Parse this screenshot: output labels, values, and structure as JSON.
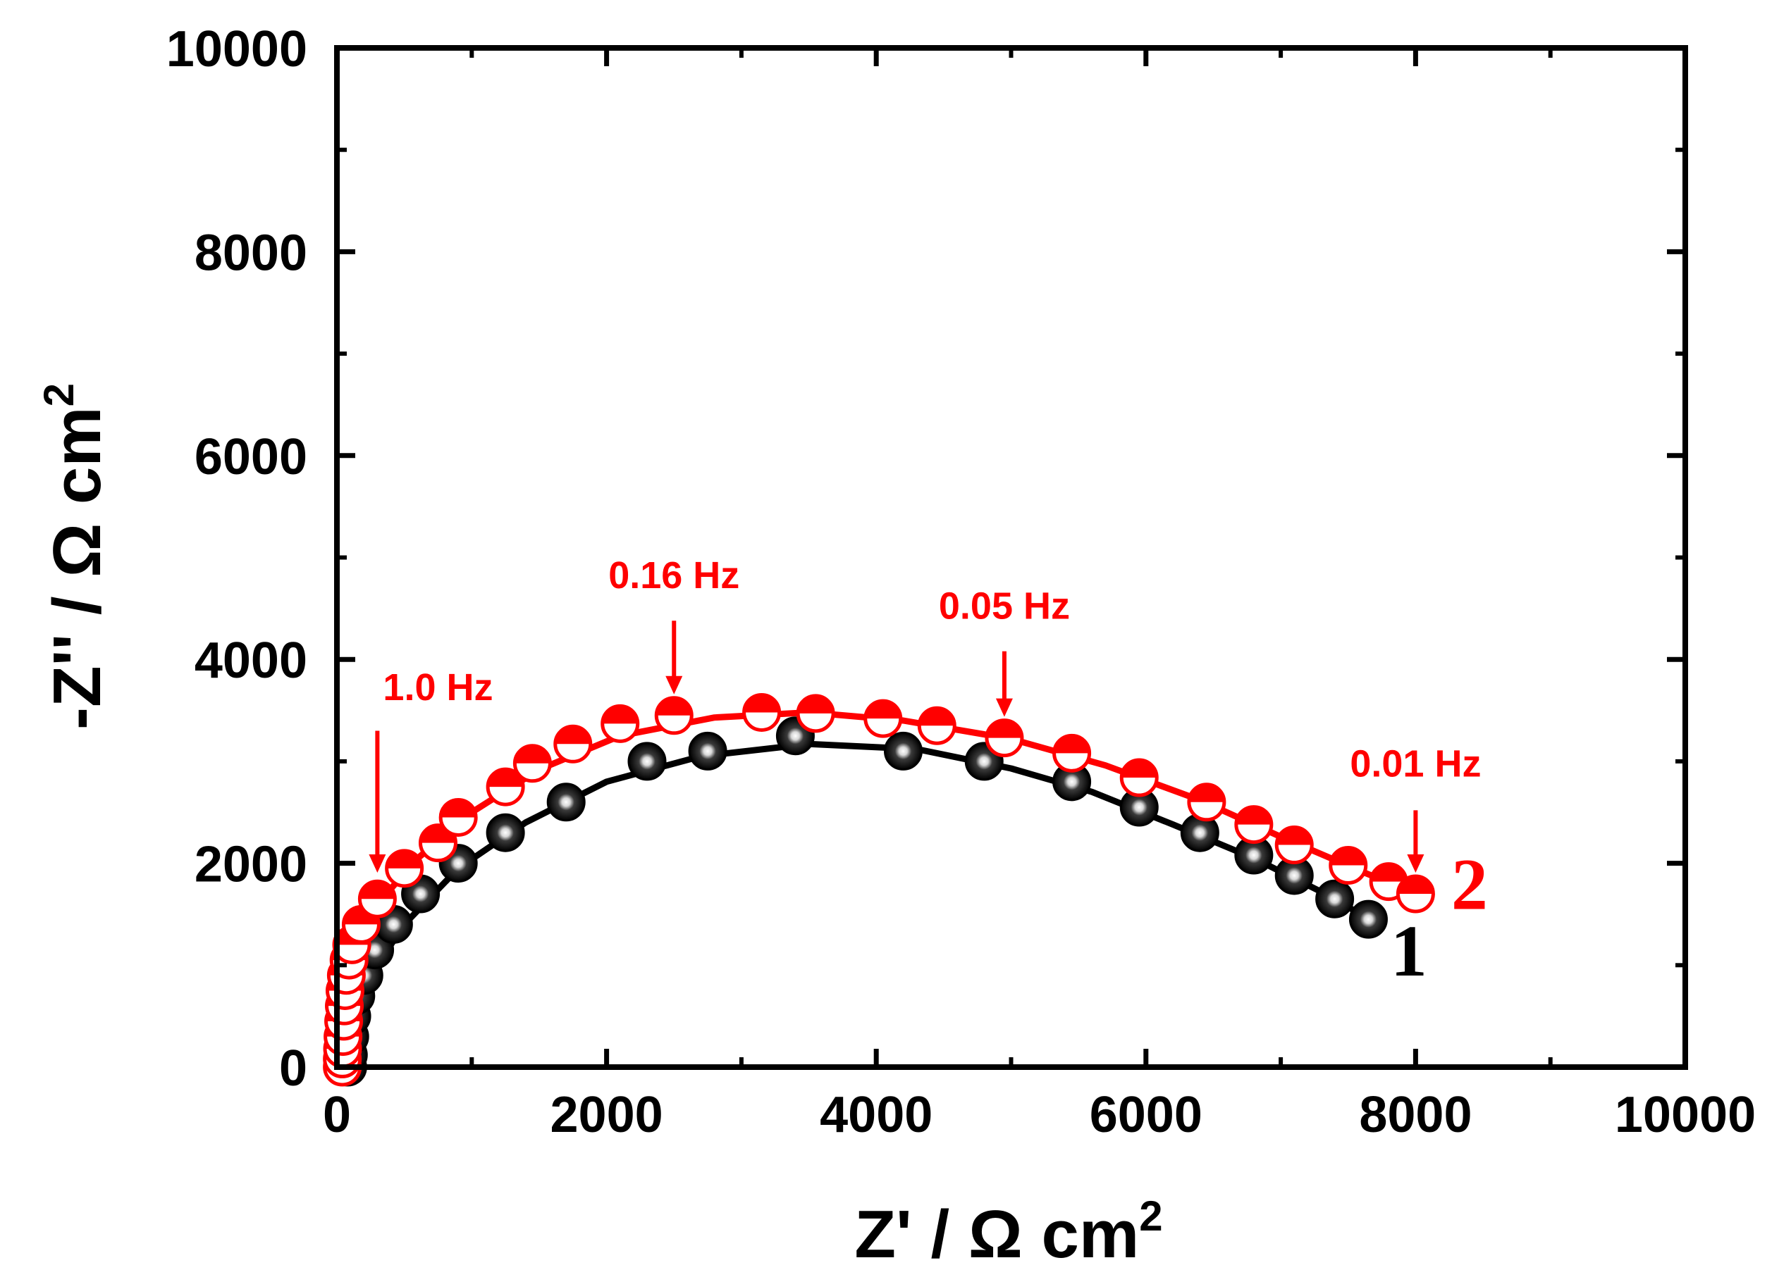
{
  "colors": {
    "series1": "#000000",
    "series2": "#ff0000",
    "axis": "#000000"
  },
  "chart_data": {
    "type": "scatter",
    "title": "",
    "xlabel": {
      "main": "Z' / Ω cm",
      "sup": "2"
    },
    "ylabel": {
      "main": "-Z'' / Ω cm",
      "sup": "2"
    },
    "xlim": [
      0,
      10000
    ],
    "ylim": [
      0,
      10000
    ],
    "xticks": [
      "0",
      "2000",
      "4000",
      "6000",
      "8000",
      "10000"
    ],
    "yticks": [
      "0",
      "2000",
      "4000",
      "6000",
      "8000",
      "10000"
    ],
    "grid": false,
    "series": [
      {
        "name": "1",
        "marker": "filled-sphere",
        "points": [
          [
            80,
            0
          ],
          [
            85,
            120
          ],
          [
            95,
            300
          ],
          [
            110,
            500
          ],
          [
            140,
            700
          ],
          [
            200,
            900
          ],
          [
            280,
            1150
          ],
          [
            420,
            1400
          ],
          [
            620,
            1700
          ],
          [
            900,
            2000
          ],
          [
            1250,
            2300
          ],
          [
            1700,
            2600
          ],
          [
            2300,
            3000
          ],
          [
            2750,
            3100
          ],
          [
            3400,
            3250
          ],
          [
            4200,
            3100
          ],
          [
            4800,
            3000
          ],
          [
            5450,
            2800
          ],
          [
            5950,
            2550
          ],
          [
            6400,
            2300
          ],
          [
            6800,
            2080
          ],
          [
            7100,
            1880
          ],
          [
            7400,
            1650
          ],
          [
            7650,
            1450
          ]
        ],
        "fit": [
          [
            110,
            0
          ],
          [
            115,
            250
          ],
          [
            170,
            600
          ],
          [
            300,
            1000
          ],
          [
            500,
            1400
          ],
          [
            900,
            1950
          ],
          [
            1400,
            2400
          ],
          [
            2000,
            2800
          ],
          [
            2700,
            3050
          ],
          [
            3500,
            3170
          ],
          [
            4300,
            3120
          ],
          [
            5000,
            2930
          ],
          [
            5600,
            2700
          ],
          [
            6200,
            2380
          ],
          [
            6800,
            2050
          ],
          [
            7300,
            1720
          ],
          [
            7700,
            1420
          ]
        ]
      },
      {
        "name": "2",
        "marker": "half-filled-circle",
        "points": [
          [
            40,
            0
          ],
          [
            40,
            80
          ],
          [
            42,
            180
          ],
          [
            45,
            300
          ],
          [
            50,
            450
          ],
          [
            55,
            600
          ],
          [
            60,
            750
          ],
          [
            70,
            900
          ],
          [
            90,
            1050
          ],
          [
            110,
            1200
          ],
          [
            180,
            1400
          ],
          [
            300,
            1650
          ],
          [
            500,
            1950
          ],
          [
            750,
            2200
          ],
          [
            900,
            2450
          ],
          [
            1250,
            2750
          ],
          [
            1450,
            2980
          ],
          [
            1750,
            3170
          ],
          [
            2100,
            3370
          ],
          [
            2500,
            3450
          ],
          [
            3150,
            3480
          ],
          [
            3550,
            3470
          ],
          [
            4050,
            3420
          ],
          [
            4450,
            3350
          ],
          [
            4950,
            3230
          ],
          [
            5450,
            3080
          ],
          [
            5950,
            2840
          ],
          [
            6450,
            2600
          ],
          [
            6800,
            2380
          ],
          [
            7100,
            2180
          ],
          [
            7500,
            1980
          ],
          [
            7800,
            1820
          ],
          [
            8000,
            1700
          ]
        ],
        "fit": [
          [
            50,
            0
          ],
          [
            55,
            500
          ],
          [
            100,
            1100
          ],
          [
            300,
            1600
          ],
          [
            600,
            2050
          ],
          [
            1000,
            2500
          ],
          [
            1500,
            2920
          ],
          [
            2100,
            3250
          ],
          [
            2800,
            3430
          ],
          [
            3500,
            3480
          ],
          [
            4200,
            3400
          ],
          [
            5000,
            3220
          ],
          [
            5700,
            2960
          ],
          [
            6400,
            2620
          ],
          [
            7000,
            2260
          ],
          [
            7600,
            1920
          ],
          [
            8000,
            1700
          ]
        ]
      }
    ],
    "annotations": [
      {
        "text": "1.0 Hz",
        "at": [
          300,
          1700
        ],
        "label_pos": [
          750,
          3600
        ],
        "arrow_from": [
          300,
          3300
        ]
      },
      {
        "text": "0.16 Hz",
        "at": [
          2500,
          3450
        ],
        "label_pos": [
          2500,
          4700
        ],
        "arrow_from": [
          2500,
          4380
        ]
      },
      {
        "text": "0.05 Hz",
        "at": [
          4950,
          3230
        ],
        "label_pos": [
          4950,
          4400
        ],
        "arrow_from": [
          4950,
          4080
        ]
      },
      {
        "text": "0.01 Hz",
        "at": [
          8000,
          1700
        ],
        "label_pos": [
          8000,
          2850
        ],
        "arrow_from": [
          8000,
          2520
        ]
      }
    ],
    "curve_labels": [
      {
        "text": "1",
        "at": [
          7950,
          900
        ],
        "color_key": "series1"
      },
      {
        "text": "2",
        "at": [
          8400,
          1550
        ],
        "color_key": "series2"
      }
    ]
  }
}
